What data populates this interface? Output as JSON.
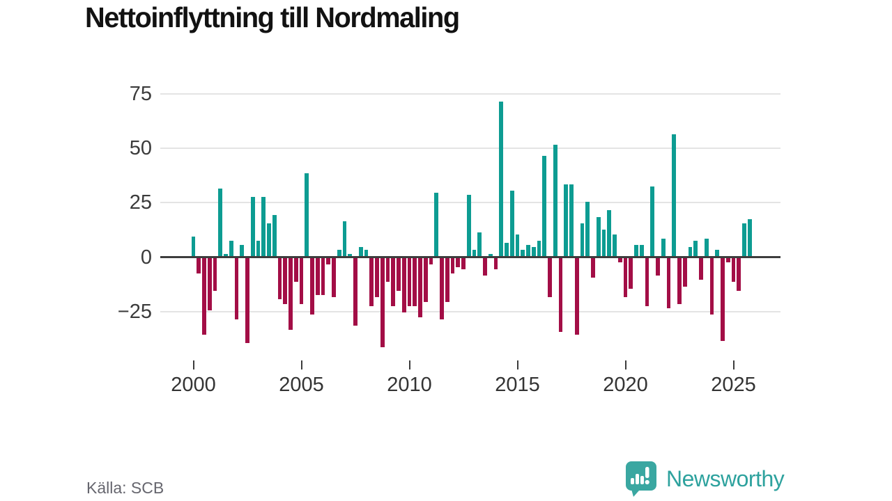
{
  "title": "Nettoinflyttning till Nordmaling",
  "source": "Källa: SCB",
  "logo": {
    "text": "Newsworthy",
    "icon": "bar-chart-exclamation-badge",
    "color": "#2ea29e"
  },
  "y_axis": {
    "tick_labels": [
      "75",
      "50",
      "25",
      "0",
      "−25"
    ],
    "tick_values": [
      75,
      50,
      25,
      0,
      -25
    ]
  },
  "x_axis": {
    "tick_labels": [
      "2000",
      "2005",
      "2010",
      "2015",
      "2020",
      "2025"
    ],
    "tick_values": [
      2000,
      2005,
      2010,
      2015,
      2020,
      2025
    ]
  },
  "chart_data": {
    "type": "bar",
    "title": "Nettoinflyttning till Nordmaling",
    "frequency": "quarterly",
    "start": "2000 Q1",
    "end": "2025 Q4",
    "start_year": 2000,
    "quarters_per_year": 4,
    "values": [
      9,
      -7,
      -35,
      -24,
      -15,
      31,
      1,
      7,
      -28,
      5,
      -39,
      27,
      7,
      27,
      15,
      19,
      -19,
      -21,
      -33,
      -11,
      -21,
      38,
      -26,
      -17,
      -17,
      -3,
      -18,
      3,
      16,
      1,
      -31,
      4,
      3,
      -22,
      -18,
      -41,
      -11,
      -22,
      -15,
      -25,
      -22,
      -22,
      -27,
      -20,
      -3,
      29,
      -28,
      -20,
      -7,
      -4,
      -5,
      28,
      3,
      11,
      -8,
      1,
      -5,
      71,
      6,
      30,
      10,
      3,
      5,
      4,
      7,
      46,
      -18,
      51,
      -34,
      33,
      33,
      -35,
      15,
      25,
      -9,
      18,
      12,
      21,
      10,
      -2,
      -18,
      -14,
      5,
      5,
      -22,
      32,
      -8,
      8,
      -23,
      56,
      -21,
      -13,
      4,
      7,
      -10,
      8,
      -26,
      3,
      -38,
      -2,
      -11,
      -15,
      15,
      17
    ],
    "ylim": [
      -45,
      78
    ],
    "grid": "horizontal",
    "legend": "none",
    "colors": {
      "positive": "#0d9c92",
      "negative": "#a30e46"
    }
  }
}
